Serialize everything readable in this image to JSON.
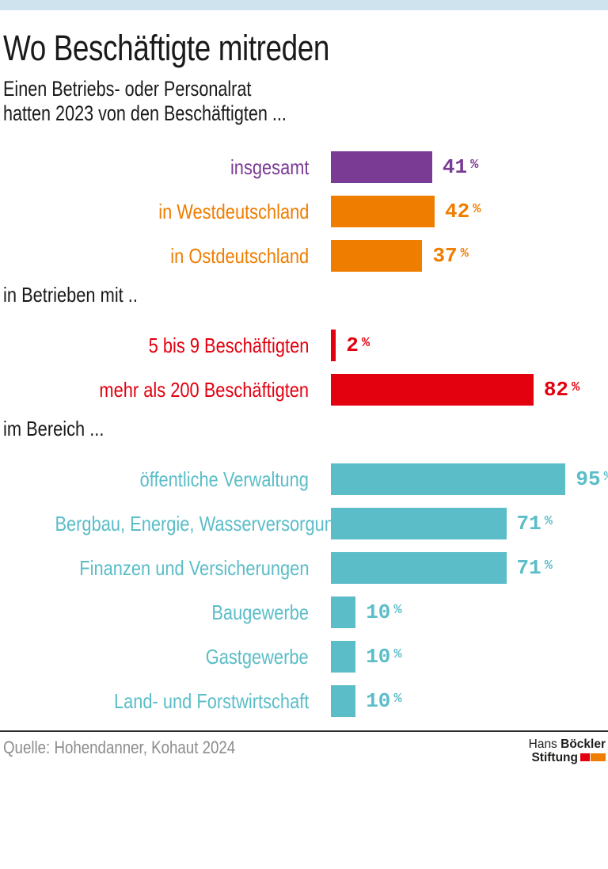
{
  "meta": {
    "top_strip_color": "#cfe3ee",
    "rule_color": "#2e2e2e",
    "source_text_color": "#8c8c8c"
  },
  "header": {
    "title": "Wo Beschäftigte mitreden",
    "subtitle_line1": "Einen Betriebs- oder Personalrat",
    "subtitle_line2": "hatten 2023 von den Beschäftigten ..."
  },
  "chart_data": {
    "type": "bar",
    "orientation": "horizontal",
    "unit": "%",
    "xlim": [
      0,
      100
    ],
    "value_labels_shown": true,
    "grid": false,
    "legend": false,
    "groups": [
      {
        "heading": "",
        "items": [
          {
            "label": "insgesamt",
            "value": 41,
            "color": "#7a3b94"
          },
          {
            "label": "in Westdeutschland",
            "value": 42,
            "color": "#ef7d00"
          },
          {
            "label": "in Ostdeutschland",
            "value": 37,
            "color": "#ef7d00"
          }
        ]
      },
      {
        "heading": "in Betrieben mit ..",
        "items": [
          {
            "label": "5 bis 9 Beschäftigten",
            "value": 2,
            "color": "#e3000f"
          },
          {
            "label": "mehr als 200 Beschäftigten",
            "value": 82,
            "color": "#e3000f"
          }
        ]
      },
      {
        "heading": "im Bereich ...",
        "items": [
          {
            "label": "öffentliche Verwaltung",
            "value": 95,
            "color": "#5bbdc8"
          },
          {
            "label": "Bergbau, Energie, Wasserversorgung",
            "value": 71,
            "color": "#5bbdc8"
          },
          {
            "label": "Finanzen und Versicherungen",
            "value": 71,
            "color": "#5bbdc8"
          },
          {
            "label": "Baugewerbe",
            "value": 10,
            "color": "#5bbdc8"
          },
          {
            "label": "Gastgewerbe",
            "value": 10,
            "color": "#5bbdc8"
          },
          {
            "label": "Land- und Forstwirtschaft",
            "value": 10,
            "color": "#5bbdc8"
          }
        ]
      }
    ]
  },
  "footer": {
    "source": "Quelle: Hohendanner, Kohaut 2024",
    "logo": {
      "line1_regular": "Hans",
      "line1_bold": "Böckler",
      "line2_bold": "Stiftung",
      "red_square_color": "#e3000f",
      "orange_square_color": "#ef7d00"
    }
  }
}
